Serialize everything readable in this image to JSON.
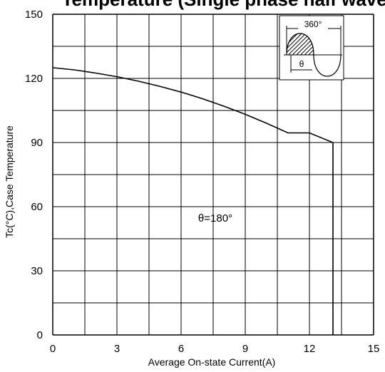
{
  "chart_data": {
    "type": "line",
    "title": "Temperature (Single phase half wave)",
    "xlabel": "Average On-state Current(A)",
    "ylabel": "Tc(°C),Case Temperature",
    "xlim": [
      0,
      15
    ],
    "ylim": [
      0,
      150
    ],
    "x_ticks": [
      "0",
      "3",
      "6",
      "9",
      "12",
      "15"
    ],
    "y_ticks": [
      "0",
      "30",
      "60",
      "90",
      "120",
      "150"
    ],
    "grid": true,
    "series": [
      {
        "name": "",
        "x": [
          0,
          1,
          2,
          3,
          4,
          5,
          6,
          7,
          8,
          9,
          10,
          11,
          12,
          13.1,
          13.1
        ],
        "y": [
          125,
          124,
          122.5,
          120.8,
          118.7,
          116.3,
          113.6,
          110.5,
          107,
          103.2,
          99,
          94.5,
          94.5,
          90,
          0
        ]
      }
    ],
    "annotations": [
      {
        "text": "θ=180°",
        "x": 7.6,
        "y": 53
      }
    ],
    "inset": {
      "period_label": "360°",
      "angle_label": "θ"
    }
  }
}
